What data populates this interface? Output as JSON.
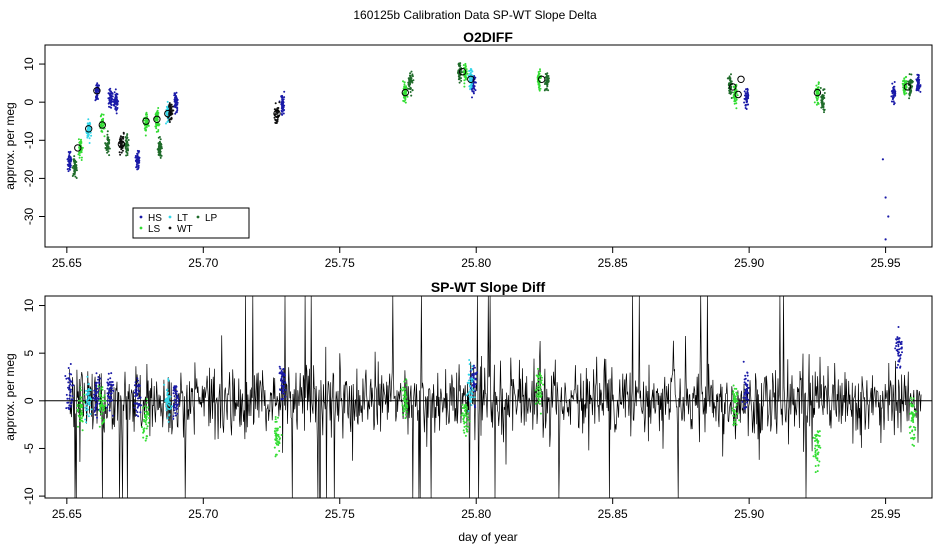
{
  "page_title": "160125b   Calibration Data SP-WT Slope Delta",
  "chart_data": [
    {
      "type": "scatter",
      "title": "O2DIFF",
      "xlabel": "",
      "ylabel": "approx. per meg",
      "xlim": [
        25.642,
        25.967
      ],
      "ylim": [
        -38,
        15
      ],
      "x_ticks": [
        25.65,
        25.7,
        25.75,
        25.8,
        25.85,
        25.9,
        25.95
      ],
      "x_tick_labels": [
        "25.65",
        "25.70",
        "25.75",
        "25.80",
        "25.85",
        "25.90",
        "25.95"
      ],
      "y_ticks": [
        -30,
        -20,
        -10,
        0,
        10
      ],
      "y_tick_labels": [
        "-30",
        "-20",
        "-10",
        "0",
        "10"
      ],
      "legend": {
        "position": "bottom-left",
        "entries": [
          {
            "label": "HS",
            "color": "#1a1aa8"
          },
          {
            "label": "LS",
            "color": "#33dd33"
          },
          {
            "label": "LT",
            "color": "#33d6e8"
          },
          {
            "label": "WT",
            "color": "#111111"
          },
          {
            "label": "LP",
            "color": "#1f6b2a"
          }
        ]
      },
      "series": [
        {
          "name": "HS",
          "color": "#1a1aa8",
          "x": [
            25.651,
            25.661,
            25.666,
            25.668,
            25.676,
            25.69,
            25.729,
            25.799,
            25.899,
            25.953,
            25.962
          ],
          "y": [
            -15.5,
            3.0,
            1.0,
            0.0,
            -15.5,
            0.0,
            -0.5,
            4.5,
            1.0,
            2.0,
            5.0
          ]
        },
        {
          "name": "LS",
          "color": "#33dd33",
          "x": [
            25.655,
            25.663,
            25.679,
            25.683,
            25.774,
            25.796,
            25.823,
            25.895,
            25.925,
            25.957
          ],
          "y": [
            -12.0,
            -6.0,
            -5.0,
            -4.5,
            2.5,
            7.5,
            6.0,
            2.0,
            2.5,
            4.0
          ]
        },
        {
          "name": "LT",
          "color": "#33d6e8",
          "x": [
            25.658,
            25.687,
            25.798
          ],
          "y": [
            -7.0,
            -3.0,
            6.0
          ]
        },
        {
          "name": "WT",
          "color": "#111111",
          "x": [
            25.67,
            25.688,
            25.727
          ],
          "y": [
            -11.0,
            -2.5,
            -3.0
          ]
        },
        {
          "name": "LP",
          "color": "#1f6b2a",
          "x": [
            25.653,
            25.665,
            25.672,
            25.684,
            25.776,
            25.794,
            25.826,
            25.893,
            25.927,
            25.959
          ],
          "y": [
            -17.0,
            -11.0,
            -11.5,
            -12.0,
            5.0,
            8.0,
            5.5,
            4.5,
            0.5,
            4.0
          ]
        }
      ],
      "highlighted_means": [
        {
          "x": 25.654,
          "y": -12.0
        },
        {
          "x": 25.658,
          "y": -7.0
        },
        {
          "x": 25.661,
          "y": 3.0
        },
        {
          "x": 25.663,
          "y": -6.0
        },
        {
          "x": 25.67,
          "y": -11.0
        },
        {
          "x": 25.679,
          "y": -5.0
        },
        {
          "x": 25.683,
          "y": -4.5
        },
        {
          "x": 25.687,
          "y": -3.0
        },
        {
          "x": 25.727,
          "y": -3.0
        },
        {
          "x": 25.774,
          "y": 2.5
        },
        {
          "x": 25.795,
          "y": 8.0
        },
        {
          "x": 25.798,
          "y": 6.0
        },
        {
          "x": 25.824,
          "y": 6.0
        },
        {
          "x": 25.894,
          "y": 4.0
        },
        {
          "x": 25.896,
          "y": 2.0
        },
        {
          "x": 25.897,
          "y": 6.0
        },
        {
          "x": 25.925,
          "y": 2.5
        },
        {
          "x": 25.958,
          "y": 4.0
        }
      ],
      "outliers": [
        {
          "x": 25.949,
          "y": -15.0
        },
        {
          "x": 25.95,
          "y": -25.0
        },
        {
          "x": 25.951,
          "y": -30.0
        },
        {
          "x": 25.95,
          "y": -36.0
        }
      ]
    },
    {
      "type": "line",
      "title": "SP-WT Slope Diff",
      "xlabel": "day of year",
      "ylabel": "approx. per meg",
      "xlim": [
        25.642,
        25.967
      ],
      "ylim": [
        -10.2,
        11
      ],
      "x_ticks": [
        25.65,
        25.7,
        25.75,
        25.8,
        25.85,
        25.9,
        25.95
      ],
      "x_tick_labels": [
        "25.65",
        "25.70",
        "25.75",
        "25.80",
        "25.85",
        "25.90",
        "25.95"
      ],
      "y_ticks": [
        -10,
        -5,
        0,
        5,
        10
      ],
      "y_tick_labels": [
        "-10",
        "-5",
        "0",
        "5",
        "10"
      ],
      "zero_line": 0,
      "series": [
        {
          "name": "WT",
          "color": "#000000",
          "x_start": 25.651,
          "x_end": 25.963,
          "approx_amplitude": 4.0
        },
        {
          "name": "HS",
          "color": "#1a1aa8",
          "x": [
            25.651,
            25.661,
            25.666,
            25.676,
            25.69,
            25.729,
            25.799,
            25.899,
            25.955
          ],
          "y": [
            1.0,
            0.5,
            1.0,
            0.5,
            0.0,
            1.5,
            2.0,
            1.0,
            5.5
          ]
        },
        {
          "name": "LS",
          "color": "#33dd33",
          "x": [
            25.655,
            25.663,
            25.679,
            25.727,
            25.774,
            25.796,
            25.823,
            25.895,
            25.925,
            25.96
          ],
          "y": [
            -1.0,
            -0.5,
            -2.0,
            -3.5,
            0.0,
            -1.5,
            1.5,
            -0.5,
            -5.0,
            -2.0
          ]
        },
        {
          "name": "LT",
          "color": "#33d6e8",
          "x": [
            25.658,
            25.687,
            25.798
          ],
          "y": [
            0.0,
            0.0,
            1.5
          ]
        }
      ]
    }
  ]
}
